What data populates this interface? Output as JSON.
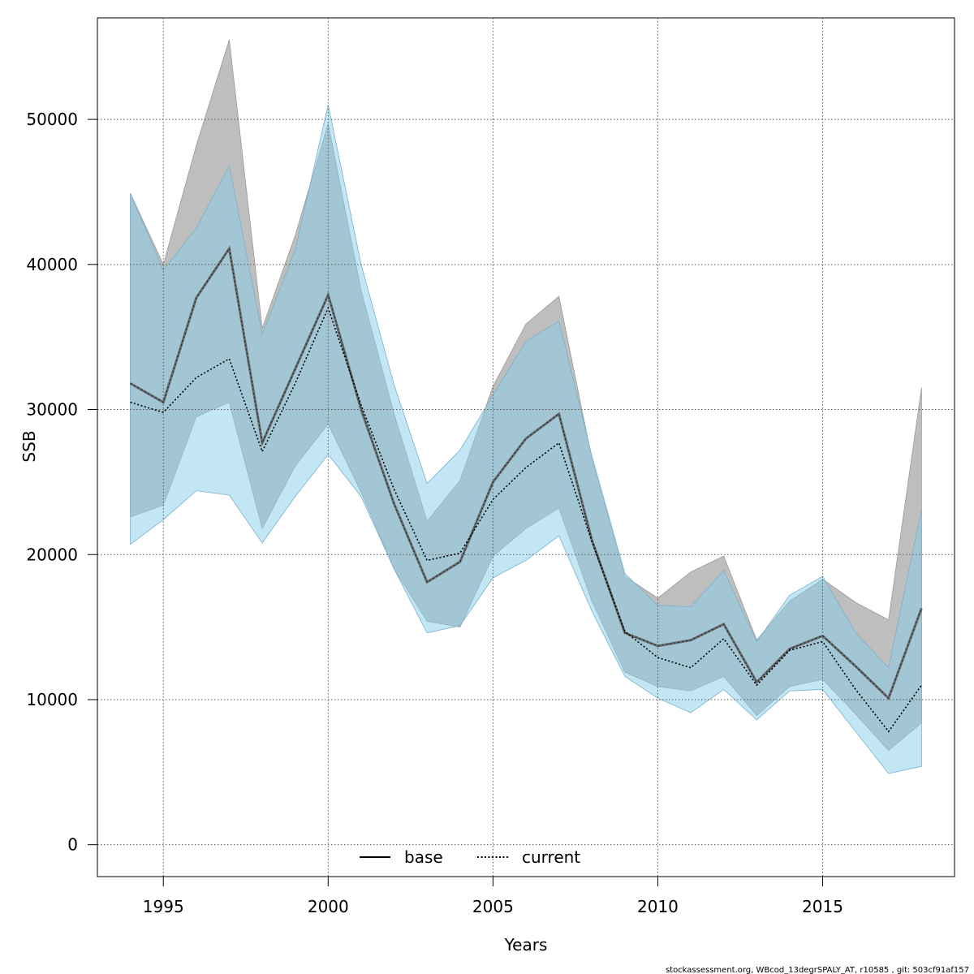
{
  "chart_data": {
    "type": "area",
    "xlabel": "Years",
    "ylabel": "SSB",
    "xlim": [
      1993,
      2019
    ],
    "ylim": [
      -2200,
      57000
    ],
    "x_ticks": [
      1995,
      2000,
      2005,
      2010,
      2015
    ],
    "y_ticks": [
      0,
      10000,
      20000,
      30000,
      40000,
      50000
    ],
    "grid": true,
    "legend_position": "bottom-center",
    "x": [
      1994,
      1995,
      1996,
      1997,
      1998,
      1999,
      2000,
      2001,
      2002,
      2003,
      2004,
      2005,
      2006,
      2007,
      2008,
      2009,
      2010,
      2011,
      2012,
      2013,
      2014,
      2015,
      2016,
      2017,
      2018
    ],
    "series": [
      {
        "name": "base",
        "line_style": "solid",
        "line_color": "#5a5a5a",
        "band_color": "#bebebe",
        "values": [
          31800,
          30500,
          37700,
          41100,
          27700,
          32800,
          37900,
          30000,
          23500,
          18100,
          19500,
          25000,
          28000,
          29700,
          21000,
          14600,
          13700,
          14100,
          15200,
          11200,
          13500,
          14400,
          12300,
          10100,
          16300
        ],
        "lower": [
          22600,
          23400,
          29500,
          30500,
          21800,
          26100,
          29000,
          24300,
          19000,
          15400,
          15000,
          19900,
          21800,
          23200,
          16800,
          11900,
          10900,
          10600,
          11600,
          8900,
          10900,
          11400,
          9000,
          6500,
          8400
        ],
        "upper": [
          44900,
          40000,
          48200,
          55500,
          35600,
          42000,
          49700,
          38200,
          29700,
          22300,
          25100,
          31600,
          35900,
          37800,
          26600,
          18500,
          17000,
          18800,
          19900,
          14100,
          16800,
          18300,
          16700,
          15500,
          31500
        ]
      },
      {
        "name": "current",
        "line_style": "dotted",
        "line_color": "#000000",
        "band_color": "#87ceeb",
        "values": [
          30500,
          29800,
          32200,
          33500,
          27100,
          31800,
          37000,
          30300,
          24500,
          19600,
          20100,
          23800,
          26000,
          27700,
          20900,
          14700,
          12900,
          12200,
          14200,
          11000,
          13400,
          14000,
          10700,
          7800,
          11000
        ],
        "lower": [
          20700,
          22400,
          24400,
          24100,
          20800,
          24000,
          26900,
          24000,
          19000,
          14600,
          15100,
          18400,
          19600,
          21300,
          16100,
          11600,
          10100,
          9100,
          10700,
          8600,
          10600,
          10700,
          7800,
          4900,
          5400
        ],
        "upper": [
          44900,
          39600,
          42500,
          46800,
          35200,
          41000,
          51000,
          40000,
          31700,
          24900,
          27200,
          31000,
          34700,
          36100,
          26800,
          18700,
          16500,
          16400,
          18900,
          14000,
          17200,
          18500,
          14600,
          12200,
          23100
        ]
      }
    ]
  },
  "footer": {
    "text": "stockassessment.org, WBcod_13degrSPALY_AT, r10585 , git: 503cf91af157"
  }
}
